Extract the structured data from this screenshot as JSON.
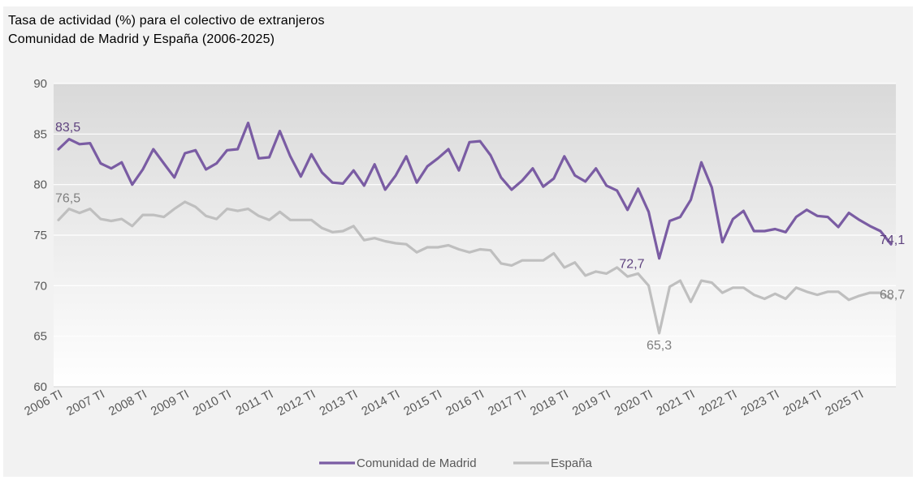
{
  "chart_data": {
    "type": "line",
    "title": "Tasa de actividad (%) para el colectivo de extranjeros",
    "subtitle": "Comunidad  de Madrid  y España (2006-2025)",
    "xlabel": "",
    "ylabel": "",
    "ylim": [
      60,
      90
    ],
    "yticks": [
      "60",
      "65",
      "70",
      "75",
      "80",
      "85",
      "90"
    ],
    "grid": true,
    "legend_position": "bottom",
    "x_tick_labels": [
      "2006 TI",
      "2007 TI",
      "2008 TI",
      "2009 TI",
      "2010 TI",
      "2011 TI",
      "2012 TI",
      "2013 TI",
      "2014 TI",
      "2015 TI",
      "2016 TI",
      "2017 TI",
      "2018 TI",
      "2019 TI",
      "2020 TI",
      "2021 TI",
      "2022 TI",
      "2023 TI",
      "2024 TI",
      "2025 TI"
    ],
    "series": [
      {
        "name": "Comunidad de Madrid",
        "color": "#7a5ca3",
        "values": [
          83.5,
          84.5,
          84.0,
          84.1,
          82.1,
          81.6,
          82.2,
          80.0,
          81.5,
          83.5,
          82.1,
          80.7,
          83.1,
          83.4,
          81.5,
          82.1,
          83.4,
          83.5,
          86.1,
          82.6,
          82.7,
          85.3,
          82.8,
          80.8,
          83.0,
          81.2,
          80.2,
          80.1,
          81.4,
          79.9,
          82.0,
          79.5,
          80.9,
          82.8,
          80.2,
          81.8,
          82.6,
          83.5,
          81.4,
          84.2,
          84.3,
          82.9,
          80.7,
          79.5,
          80.4,
          81.6,
          79.8,
          80.6,
          82.8,
          80.9,
          80.3,
          81.6,
          79.9,
          79.4,
          77.5,
          79.6,
          77.3,
          72.7,
          76.4,
          76.8,
          78.5,
          82.2,
          79.7,
          74.3,
          76.6,
          77.4,
          75.4,
          75.4,
          75.6,
          75.3,
          76.8,
          77.5,
          76.9,
          76.8,
          75.8,
          77.2,
          76.5,
          75.9,
          75.4,
          74.1
        ],
        "labels": [
          {
            "index": 0,
            "text": "83,5"
          },
          {
            "index": 57,
            "text": "72,7"
          },
          {
            "index": 79,
            "text": "74,1"
          }
        ]
      },
      {
        "name": "España",
        "color": "#bfbfbf",
        "values": [
          76.5,
          77.6,
          77.2,
          77.6,
          76.6,
          76.4,
          76.6,
          75.9,
          77.0,
          77.0,
          76.8,
          77.6,
          78.3,
          77.8,
          76.9,
          76.6,
          77.6,
          77.4,
          77.6,
          76.9,
          76.5,
          77.3,
          76.5,
          76.5,
          76.5,
          75.7,
          75.3,
          75.4,
          75.9,
          74.5,
          74.7,
          74.4,
          74.2,
          74.1,
          73.3,
          73.8,
          73.8,
          74.0,
          73.6,
          73.3,
          73.6,
          73.5,
          72.2,
          72.0,
          72.5,
          72.5,
          72.5,
          73.2,
          71.8,
          72.3,
          71.0,
          71.4,
          71.2,
          71.8,
          70.9,
          71.2,
          70.0,
          65.3,
          69.9,
          70.5,
          68.4,
          70.5,
          70.3,
          69.3,
          69.8,
          69.8,
          69.1,
          68.7,
          69.2,
          68.7,
          69.8,
          69.4,
          69.1,
          69.4,
          69.4,
          68.6,
          69.0,
          69.3,
          69.3,
          68.7
        ],
        "labels": [
          {
            "index": 0,
            "text": "76,5"
          },
          {
            "index": 57,
            "text": "65,3"
          },
          {
            "index": 79,
            "text": "68,7"
          }
        ]
      }
    ]
  }
}
